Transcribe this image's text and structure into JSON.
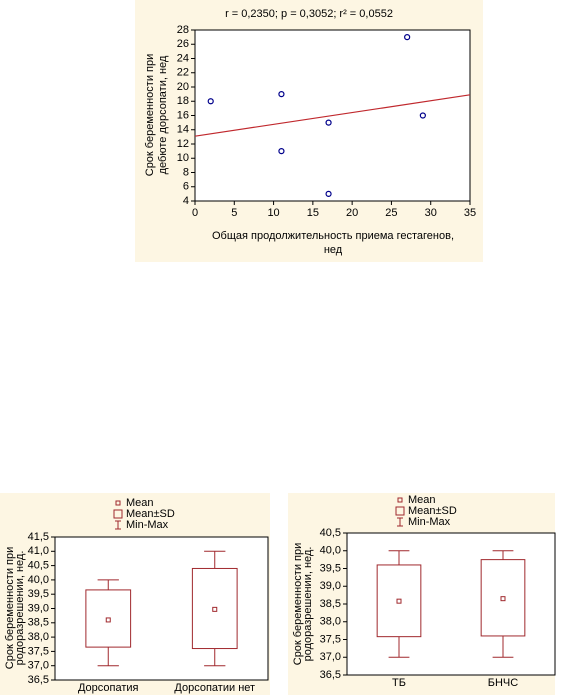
{
  "chart_data": [
    {
      "type": "scatter",
      "title": "r = 0,2350; p = 0,3052; r² = 0,0552",
      "xlabel": [
        "Общая продолжительность приема гестагенов,",
        "нед"
      ],
      "ylabel": [
        "Срок беременности при",
        "дебюте дорсопати, нед"
      ],
      "x": [
        2,
        11,
        11,
        17,
        17,
        27,
        29
      ],
      "values": [
        18,
        19,
        11,
        15,
        5,
        27,
        16
      ],
      "color": "#00008b",
      "fit": {
        "x": [
          0,
          35
        ],
        "values": [
          13.1,
          18.9
        ],
        "color": "#c0282d"
      },
      "xlim": [
        0,
        35
      ],
      "xticks": [
        0,
        5,
        10,
        15,
        20,
        25,
        30,
        35
      ],
      "ylim": [
        4,
        28
      ],
      "yticks": [
        4,
        6,
        8,
        10,
        12,
        14,
        16,
        18,
        20,
        22,
        24,
        26,
        28
      ]
    },
    {
      "type": "box",
      "legend": [
        "Mean",
        "Mean±SD",
        "Min-Max"
      ],
      "ylabel": [
        "Срок беременности при",
        "родоразрешении, нед."
      ],
      "categories": [
        "Дорсопатия",
        "Дорсопатии нет"
      ],
      "color": "#a0282d",
      "mean": [
        38.6,
        38.97
      ],
      "mean_minus_sd": [
        37.65,
        37.6
      ],
      "mean_plus_sd": [
        39.65,
        40.4
      ],
      "min": [
        37.0,
        37.0
      ],
      "max": [
        40.0,
        41.0
      ],
      "ylim": [
        36.5,
        41.5
      ],
      "yticks": [
        {
          "value": 36.5,
          "label": "36,5"
        },
        {
          "value": 37.0,
          "label": "37,0"
        },
        {
          "value": 37.5,
          "label": "37,5"
        },
        {
          "value": 38.0,
          "label": "38,0"
        },
        {
          "value": 38.5,
          "label": "38,5"
        },
        {
          "value": 39.0,
          "label": "39,0"
        },
        {
          "value": 39.5,
          "label": "39,5"
        },
        {
          "value": 40.0,
          "label": "40,0"
        },
        {
          "value": 40.5,
          "label": "40,5"
        },
        {
          "value": 41.0,
          "label": "41,0"
        },
        {
          "value": 41.5,
          "label": "41,5"
        }
      ]
    },
    {
      "type": "box",
      "legend": [
        "Mean",
        "Mean±SD",
        "Min-Max"
      ],
      "ylabel": [
        "Срок беременности при",
        "родоразрешении, нед."
      ],
      "categories": [
        "ТБ",
        "БНЧС"
      ],
      "color": "#a0282d",
      "mean": [
        38.58,
        38.65
      ],
      "mean_minus_sd": [
        37.58,
        37.6
      ],
      "mean_plus_sd": [
        39.6,
        39.75
      ],
      "min": [
        37.0,
        37.0
      ],
      "max": [
        40.0,
        40.0
      ],
      "ylim": [
        36.5,
        40.5
      ],
      "yticks": [
        {
          "value": 36.5,
          "label": "36,5"
        },
        {
          "value": 37.0,
          "label": "37,0"
        },
        {
          "value": 37.5,
          "label": "37,5"
        },
        {
          "value": 38.0,
          "label": "38,0"
        },
        {
          "value": 38.5,
          "label": "38,5"
        },
        {
          "value": 39.0,
          "label": "39,0"
        },
        {
          "value": 39.5,
          "label": "39,5"
        },
        {
          "value": 40.0,
          "label": "40,0"
        },
        {
          "value": 40.5,
          "label": "40,5"
        }
      ]
    }
  ]
}
